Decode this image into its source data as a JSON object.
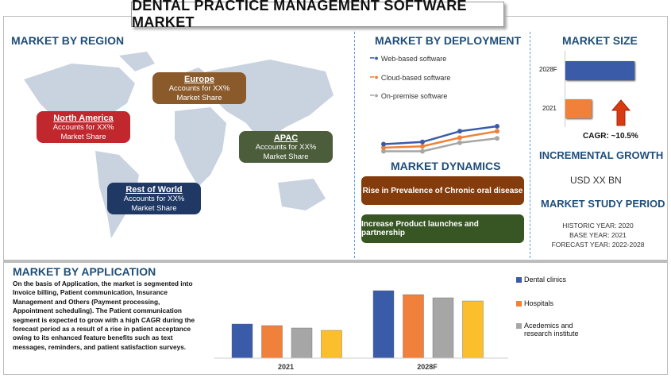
{
  "title": "DENTAL PRACTICE MANAGEMENT SOFTWARE MARKET",
  "region": {
    "heading": "MARKET BY REGION",
    "items": [
      {
        "name": "North America",
        "text1": "Accounts for XX%",
        "text2": "Market Share",
        "color": "#c0282e"
      },
      {
        "name": "Europe",
        "text1": "Accounts for XX%",
        "text2": "Market Share",
        "color": "#8a5a2b"
      },
      {
        "name": "APAC",
        "text1": "Accounts for XX%",
        "text2": "Market Share",
        "color": "#4b5d3a"
      },
      {
        "name": "Rest of World",
        "text1": "Accounts for XX%",
        "text2": "Market Share",
        "color": "#1f3864"
      }
    ]
  },
  "deployment": {
    "heading": "MARKET BY DEPLOYMENT",
    "series": [
      {
        "name": "Web-based software",
        "color": "#3a5ba8",
        "values": [
          3,
          3.3,
          4.8,
          5.5
        ]
      },
      {
        "name": "Cloud-based software",
        "color": "#f0803a",
        "values": [
          2.5,
          2.7,
          3.9,
          4.8
        ]
      },
      {
        "name": "On-premise software",
        "color": "#a6a6a6",
        "values": [
          2,
          2,
          3.2,
          3.8
        ]
      }
    ]
  },
  "dynamics": {
    "heading": "MARKET DYNAMICS",
    "items": [
      {
        "label": "Rise in Prevalence of Chronic oral disease",
        "color": "#843c0c"
      },
      {
        "label": "Increase Product launches and partnership",
        "color": "#375623"
      }
    ]
  },
  "size": {
    "heading": "MARKET SIZE",
    "bars": [
      {
        "label": "2028F",
        "value": 1.0,
        "color": "#3a5ba8"
      },
      {
        "label": "2021",
        "value": 0.37,
        "color": "#f0803a"
      }
    ],
    "cagr": "CAGR:  ~10.5%"
  },
  "incremental": {
    "heading": "INCREMENTAL GROWTH",
    "value": "USD XX BN"
  },
  "study": {
    "heading": "MARKET STUDY PERIOD",
    "historic": "HISTORIC YEAR: 2020",
    "base": "BASE YEAR: 2021",
    "forecast": "FORECAST YEAR: 2022-2028"
  },
  "application": {
    "heading": "MARKET BY APPLICATION",
    "text": "On the basis of Application, the market is segmented into Invoice billing, Patient communication, Insurance Management and Others (Payment processing, Appointment scheduling). The Patient communication segment is expected to grow with a high CAGR during the forecast period as a result of a rise in patient acceptance owing to its enhanced feature benefits such as text messages, reminders, and patient satisfaction surveys."
  },
  "chart_data": {
    "type": "bar",
    "categories": [
      "2021",
      "2028F"
    ],
    "series": [
      {
        "name": "Dental clinics",
        "color": "#3a5ba8",
        "values": [
          43,
          85
        ]
      },
      {
        "name": "Hospitals",
        "color": "#f0803a",
        "values": [
          41,
          80
        ]
      },
      {
        "name": "Acedemics and research institute",
        "color": "#a6a6a6",
        "values": [
          38,
          76
        ]
      },
      {
        "name": "",
        "color": "#fbbf2d",
        "values": [
          35,
          72
        ]
      }
    ]
  }
}
